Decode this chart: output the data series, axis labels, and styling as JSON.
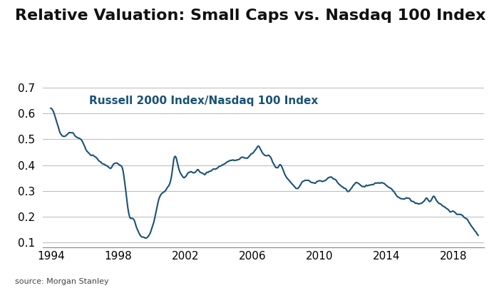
{
  "title": "Relative Valuation: Small Caps vs. Nasdaq 100 Index",
  "annotation": "Russell 2000 Index/Nasdaq 100 Index",
  "annotation_color": "#1a5276",
  "line_color": "#1a5276",
  "line_width": 1.5,
  "background_color": "#ffffff",
  "grid_color": "#c0c0c0",
  "ylabel_ticks": [
    0.1,
    0.2,
    0.3,
    0.4,
    0.5,
    0.6,
    0.7
  ],
  "xtick_labels": [
    "1994",
    "1998",
    "2002",
    "2006",
    "2010",
    "2014",
    "2018"
  ],
  "ylim": [
    0.08,
    0.75
  ],
  "source_text": "source: Morgan Stanley",
  "title_fontsize": 16,
  "annotation_fontsize": 11,
  "tick_fontsize": 11,
  "source_fontsize": 8
}
